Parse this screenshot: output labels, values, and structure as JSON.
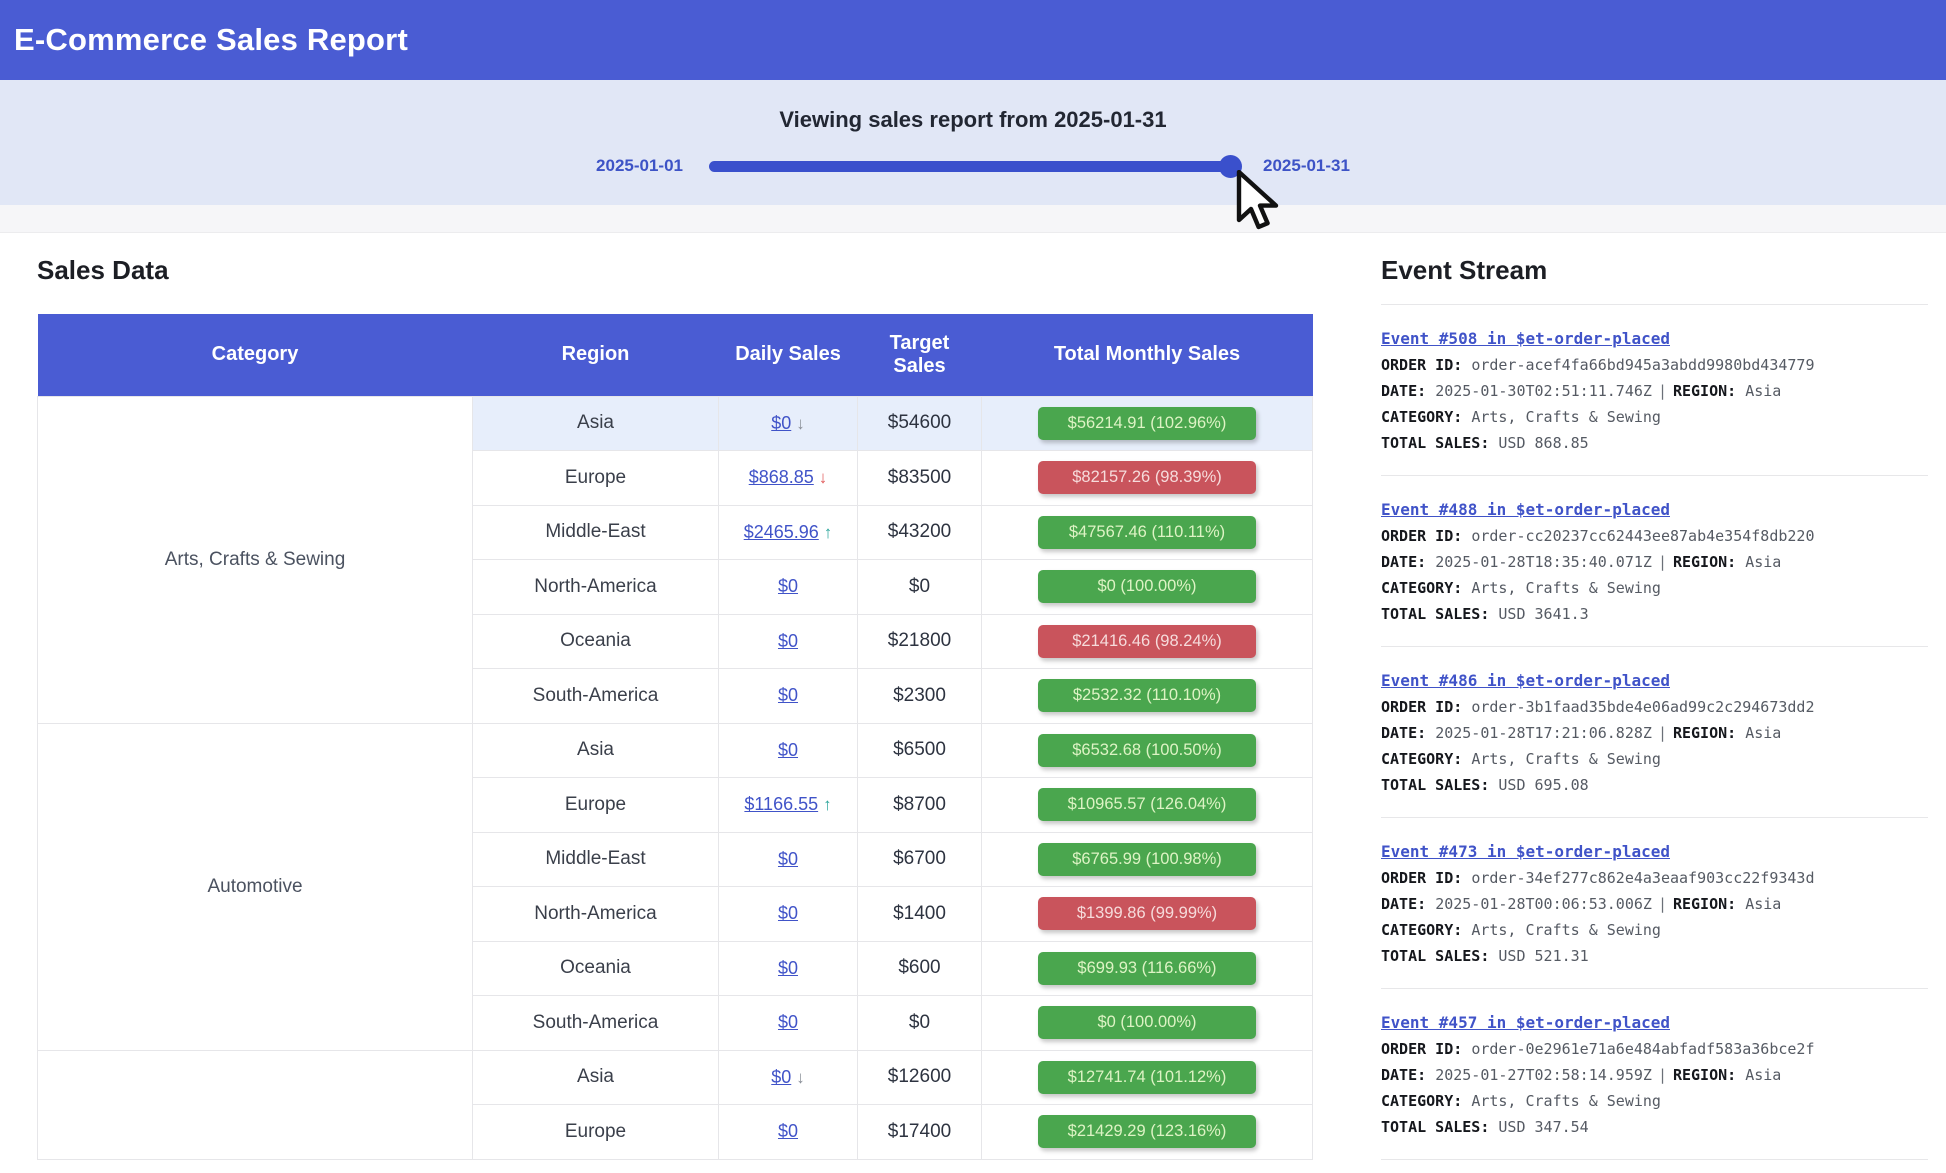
{
  "header": {
    "title": "E-Commerce Sales Report"
  },
  "slider": {
    "title": "Viewing sales report from 2025-01-31",
    "min_label": "2025-01-01",
    "max_label": "2025-01-31",
    "value_percent": 100
  },
  "sales": {
    "heading": "Sales Data",
    "columns": [
      "Category",
      "Region",
      "Daily Sales",
      "Target Sales",
      "Total Monthly Sales"
    ],
    "groups": [
      {
        "category": "Arts, Crafts & Sewing",
        "rows": [
          {
            "region": "Asia",
            "daily": "$0",
            "arrow": "down-gray",
            "target": "$54600",
            "total": "$56214.91 (102.96%)",
            "status": "green",
            "highlight": true
          },
          {
            "region": "Europe",
            "daily": "$868.85",
            "arrow": "down-red",
            "target": "$83500",
            "total": "$82157.26 (98.39%)",
            "status": "red"
          },
          {
            "region": "Middle-East",
            "daily": "$2465.96",
            "arrow": "up-teal",
            "target": "$43200",
            "total": "$47567.46 (110.11%)",
            "status": "green"
          },
          {
            "region": "North-America",
            "daily": "$0",
            "arrow": "",
            "target": "$0",
            "total": "$0 (100.00%)",
            "status": "green"
          },
          {
            "region": "Oceania",
            "daily": "$0",
            "arrow": "",
            "target": "$21800",
            "total": "$21416.46 (98.24%)",
            "status": "red"
          },
          {
            "region": "South-America",
            "daily": "$0",
            "arrow": "",
            "target": "$2300",
            "total": "$2532.32 (110.10%)",
            "status": "green"
          }
        ]
      },
      {
        "category": "Automotive",
        "rows": [
          {
            "region": "Asia",
            "daily": "$0",
            "arrow": "",
            "target": "$6500",
            "total": "$6532.68 (100.50%)",
            "status": "green"
          },
          {
            "region": "Europe",
            "daily": "$1166.55",
            "arrow": "up-teal",
            "target": "$8700",
            "total": "$10965.57 (126.04%)",
            "status": "green"
          },
          {
            "region": "Middle-East",
            "daily": "$0",
            "arrow": "",
            "target": "$6700",
            "total": "$6765.99 (100.98%)",
            "status": "green"
          },
          {
            "region": "North-America",
            "daily": "$0",
            "arrow": "",
            "target": "$1400",
            "total": "$1399.86 (99.99%)",
            "status": "red"
          },
          {
            "region": "Oceania",
            "daily": "$0",
            "arrow": "",
            "target": "$600",
            "total": "$699.93 (116.66%)",
            "status": "green"
          },
          {
            "region": "South-America",
            "daily": "$0",
            "arrow": "",
            "target": "$0",
            "total": "$0 (100.00%)",
            "status": "green"
          }
        ]
      },
      {
        "category": "",
        "rows": [
          {
            "region": "Asia",
            "daily": "$0",
            "arrow": "down-gray",
            "target": "$12600",
            "total": "$12741.74 (101.12%)",
            "status": "green"
          },
          {
            "region": "Europe",
            "daily": "$0",
            "arrow": "",
            "target": "$17400",
            "total": "$21429.29 (123.16%)",
            "status": "green"
          }
        ]
      }
    ]
  },
  "events": {
    "heading": "Event Stream",
    "labels": {
      "order_id": "ORDER ID:",
      "date": "DATE:",
      "region": "REGION:",
      "category": "CATEGORY:",
      "total_sales": "TOTAL SALES:"
    },
    "items": [
      {
        "title": "Event #508 in $et-order-placed",
        "order_id": "order-acef4fa66bd945a3abdd9980bd434779",
        "date": "2025-01-30T02:51:11.746Z",
        "region": "Asia",
        "category": "Arts, Crafts & Sewing",
        "total_sales": "USD 868.85"
      },
      {
        "title": "Event #488 in $et-order-placed",
        "order_id": "order-cc20237cc62443ee87ab4e354f8db220",
        "date": "2025-01-28T18:35:40.071Z",
        "region": "Asia",
        "category": "Arts, Crafts & Sewing",
        "total_sales": "USD 3641.3"
      },
      {
        "title": "Event #486 in $et-order-placed",
        "order_id": "order-3b1faad35bde4e06ad99c2c294673dd2",
        "date": "2025-01-28T17:21:06.828Z",
        "region": "Asia",
        "category": "Arts, Crafts & Sewing",
        "total_sales": "USD 695.08"
      },
      {
        "title": "Event #473 in $et-order-placed",
        "order_id": "order-34ef277c862e4a3eaaf903cc22f9343d",
        "date": "2025-01-28T00:06:53.006Z",
        "region": "Asia",
        "category": "Arts, Crafts & Sewing",
        "total_sales": "USD 521.31"
      },
      {
        "title": "Event #457 in $et-order-placed",
        "order_id": "order-0e2961e71a6e484abfadf583a36bce2f",
        "date": "2025-01-27T02:58:14.959Z",
        "region": "Asia",
        "category": "Arts, Crafts & Sewing",
        "total_sales": "USD 347.54"
      }
    ]
  },
  "colors": {
    "accent_blue": "#4a5cd3",
    "slider_blue": "#3a50cc",
    "band_lavender": "#e1e7f6",
    "badge_green": "#4aa64e",
    "badge_red": "#c9545c",
    "link_blue": "#4053c8"
  }
}
